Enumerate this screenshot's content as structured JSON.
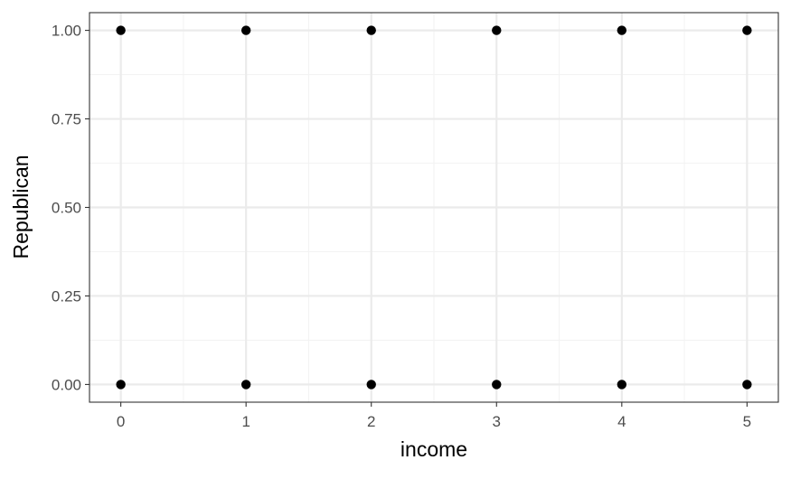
{
  "chart_data": {
    "type": "scatter",
    "title": "",
    "xlabel": "income",
    "ylabel": "Republican",
    "xlim": [
      -0.25,
      5.25
    ],
    "ylim": [
      -0.05,
      1.05
    ],
    "x_ticks": [
      0,
      1,
      2,
      3,
      4,
      5
    ],
    "x_tick_labels": [
      "0",
      "1",
      "2",
      "3",
      "4",
      "5"
    ],
    "y_ticks": [
      0,
      0.25,
      0.5,
      0.75,
      1.0
    ],
    "y_tick_labels": [
      "0.00",
      "0.25",
      "0.50",
      "0.75",
      "1.00"
    ],
    "grid": true,
    "legend": "none",
    "points": [
      {
        "x": 0,
        "y": 1
      },
      {
        "x": 1,
        "y": 1
      },
      {
        "x": 2,
        "y": 1
      },
      {
        "x": 3,
        "y": 1
      },
      {
        "x": 4,
        "y": 1
      },
      {
        "x": 5,
        "y": 1
      },
      {
        "x": 0,
        "y": 0
      },
      {
        "x": 1,
        "y": 0
      },
      {
        "x": 2,
        "y": 0
      },
      {
        "x": 3,
        "y": 0
      },
      {
        "x": 4,
        "y": 0
      },
      {
        "x": 5,
        "y": 0
      }
    ],
    "colors": {
      "point": "#000000",
      "panel_border": "#333333",
      "grid_major": "#ebebeb",
      "grid_minor": "#f3f3f3",
      "tick_text": "#4d4d4d",
      "axis_title": "#000000"
    }
  }
}
